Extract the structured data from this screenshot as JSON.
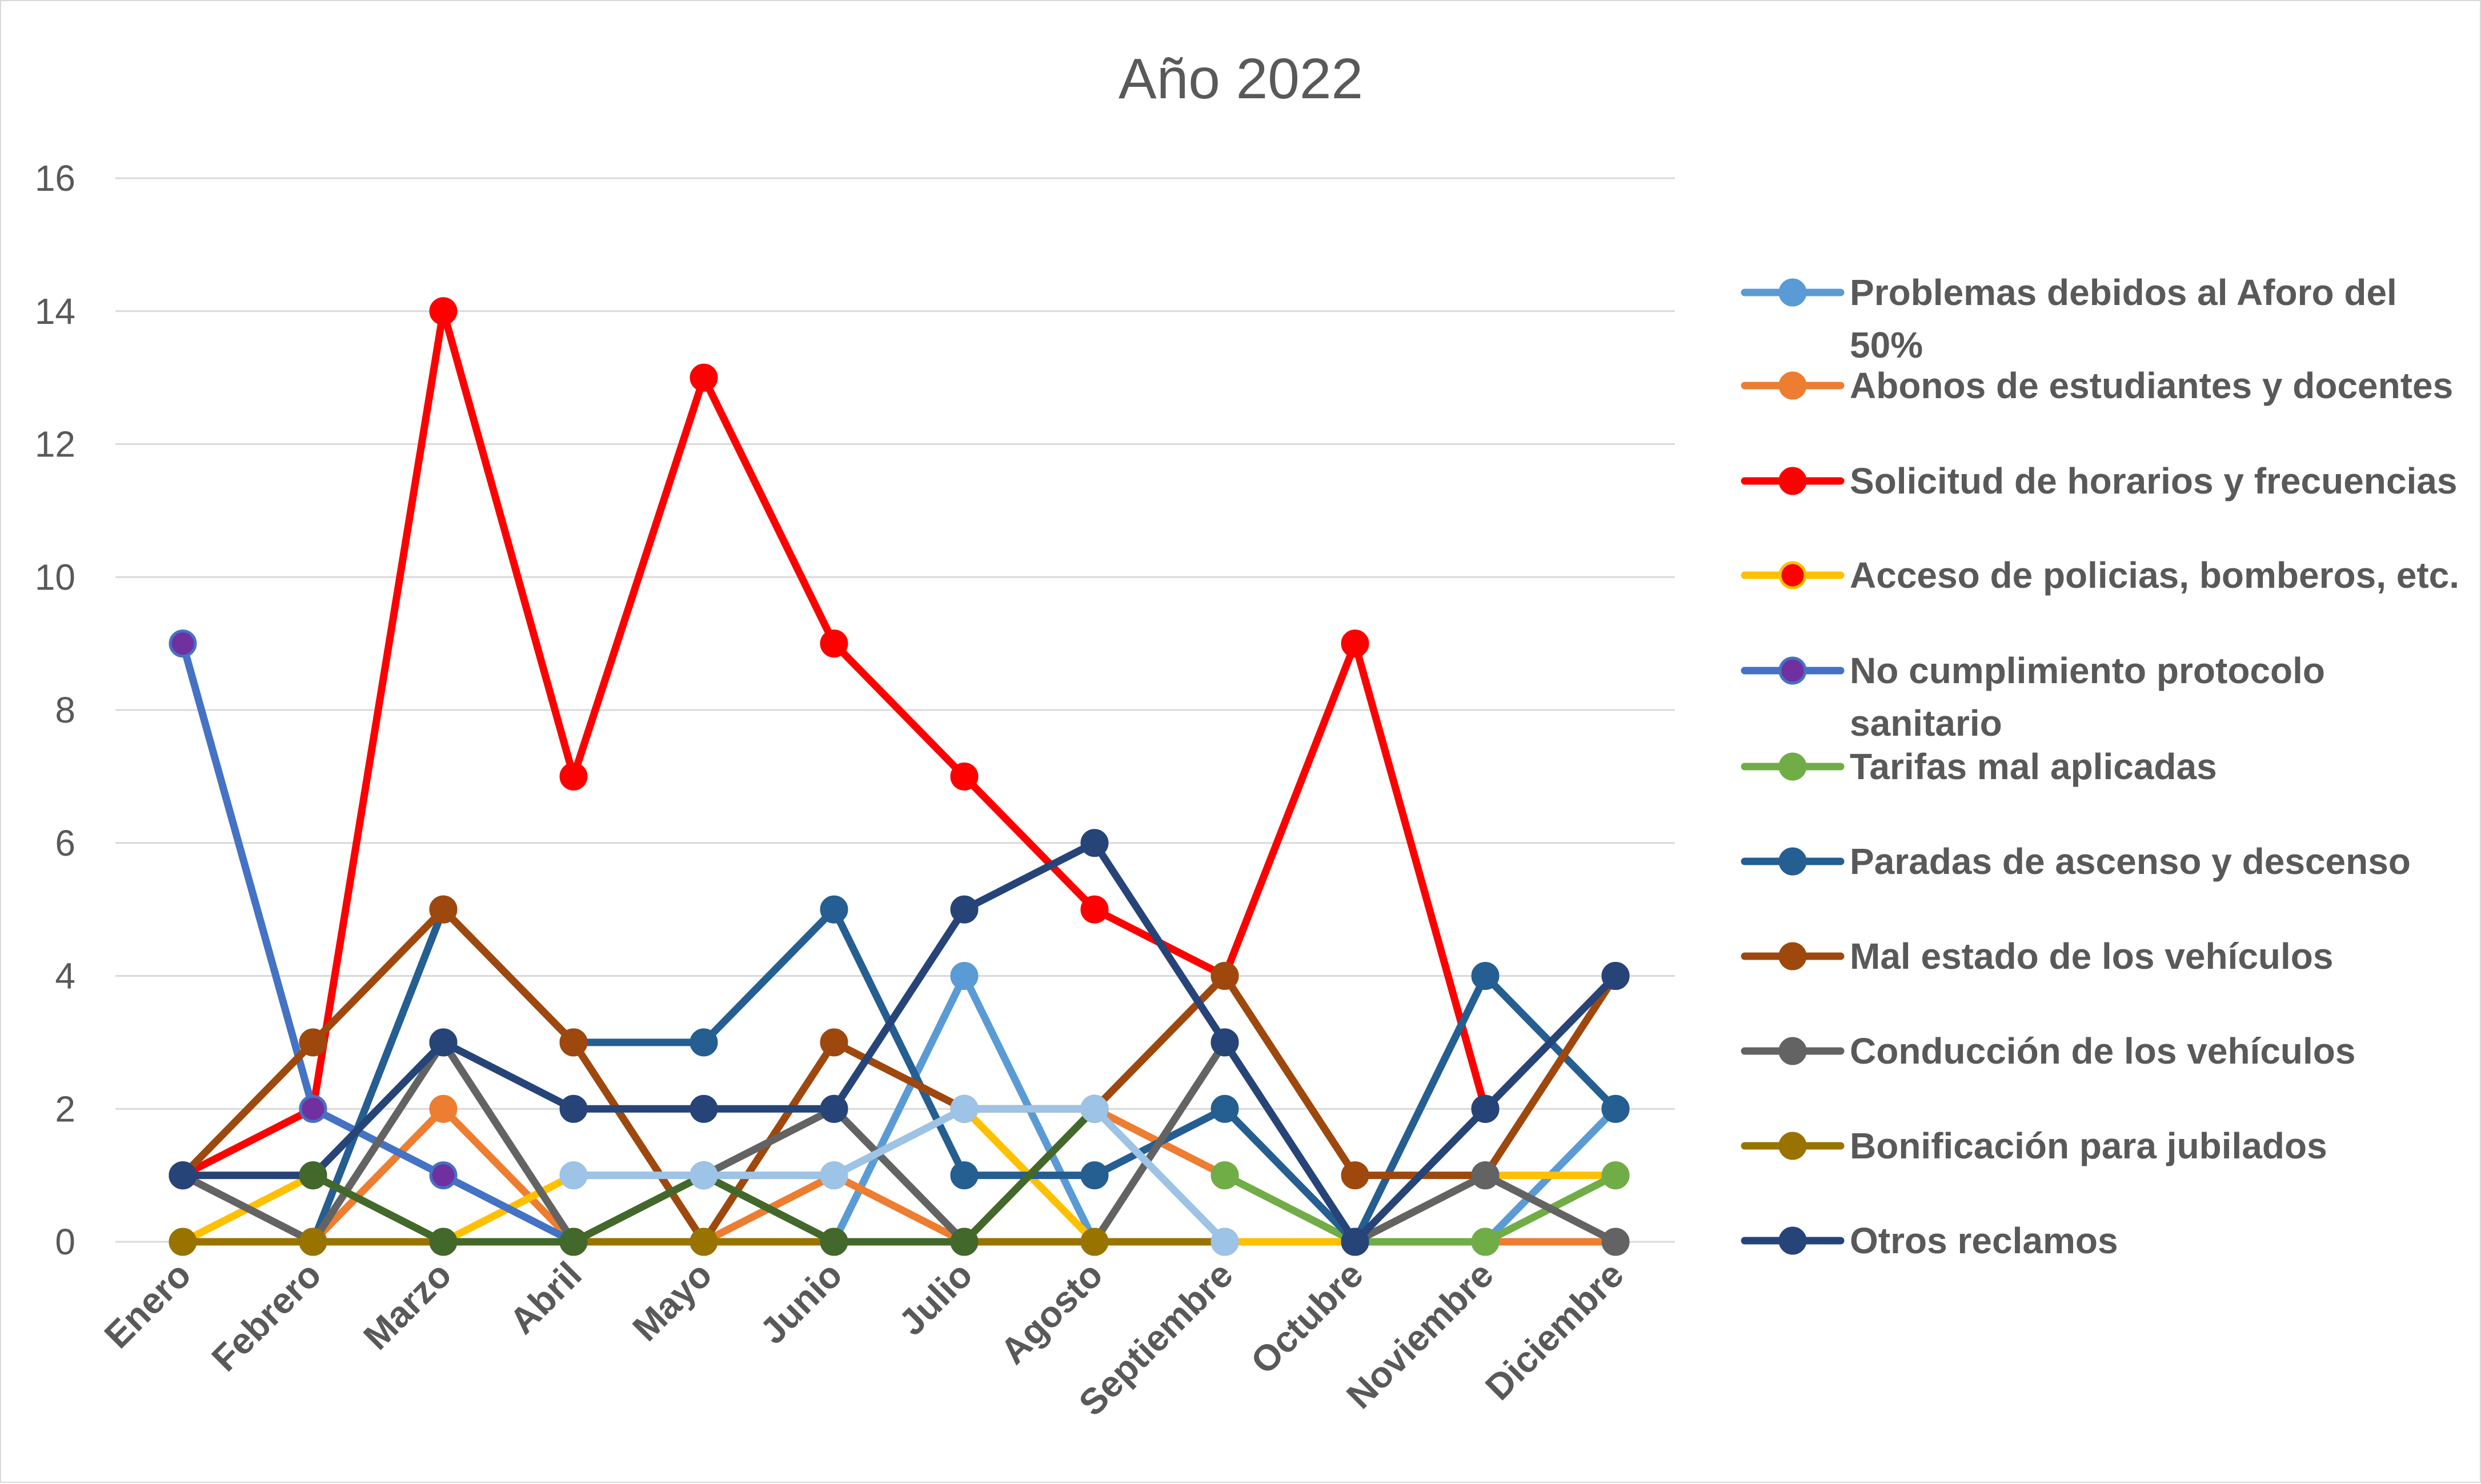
{
  "chart_data": {
    "type": "line",
    "title": "Año 2022",
    "xlabel": "",
    "ylabel": "",
    "ylim": [
      0,
      16
    ],
    "yticks": [
      0,
      2,
      4,
      6,
      8,
      10,
      12,
      14,
      16
    ],
    "grid": "horizontal",
    "legend_position": "right",
    "categories": [
      "Enero",
      "Febrero",
      "Marzo",
      "Abril",
      "Mayo",
      "Junio",
      "Julio",
      "Agosto",
      "Septiembre",
      "Octubre",
      "Noviembre",
      "Diciembre"
    ],
    "series": [
      {
        "name": "Problemas debidos al  Aforo del 50%",
        "color": "#5b9bd5",
        "marker": "#5b9bd5",
        "values": [
          null,
          null,
          null,
          null,
          null,
          0,
          4,
          0,
          0,
          0,
          0,
          2
        ]
      },
      {
        "name": "Abonos de estudiantes y docentes",
        "color": "#ed7d31",
        "marker": "#ed7d31",
        "values": [
          null,
          0,
          2,
          0,
          0,
          1,
          0,
          2,
          1,
          0,
          0,
          0
        ]
      },
      {
        "name": "Solicitud de horarios y frecuencias",
        "color": "#ff0000",
        "marker": "#ff0000",
        "values": [
          1,
          2,
          14,
          7,
          13,
          9,
          7,
          5,
          4,
          9,
          2,
          4
        ]
      },
      {
        "name": "Acceso de policias, bomberos, etc.",
        "color": "#ffc000",
        "marker": "#ff0000",
        "values": [
          0,
          1,
          0,
          1,
          1,
          1,
          2,
          0,
          0,
          0,
          1,
          1
        ]
      },
      {
        "name": "No cumplimiento protocolo sanitario",
        "color": "#4472c4",
        "marker": "#7030a0",
        "values": [
          9,
          2,
          1,
          0,
          null,
          null,
          null,
          null,
          null,
          null,
          null,
          null
        ]
      },
      {
        "name": "Tarifas mal aplicadas",
        "color": "#70ad47",
        "marker": "#70ad47",
        "values": [
          null,
          null,
          null,
          null,
          null,
          null,
          null,
          null,
          1,
          0,
          0,
          1
        ]
      },
      {
        "name": "Paradas de ascenso y descenso",
        "color": "#255e91",
        "marker": "#255e91",
        "values": [
          null,
          0,
          5,
          3,
          3,
          5,
          1,
          1,
          2,
          0,
          4,
          2
        ]
      },
      {
        "name": "Mal estado de los vehículos",
        "color": "#9e480e",
        "marker": "#9e480e",
        "values": [
          1,
          3,
          5,
          3,
          0,
          3,
          2,
          2,
          4,
          1,
          1,
          4
        ]
      },
      {
        "name": "Conducción de los vehículos",
        "color": "#636363",
        "marker": "#636363",
        "values": [
          1,
          0,
          3,
          0,
          1,
          2,
          0,
          0,
          3,
          0,
          1,
          0
        ]
      },
      {
        "name": "Bonificación para jubilados",
        "color": "#997300",
        "marker": "#997300",
        "values": [
          0,
          0,
          0,
          0,
          0,
          0,
          0,
          0,
          0,
          null,
          null,
          null
        ]
      },
      {
        "name": "Otros reclamos",
        "color": "#264478",
        "marker": "#264478",
        "values": [
          1,
          1,
          3,
          2,
          2,
          2,
          5,
          6,
          3,
          0,
          2,
          4
        ]
      },
      {
        "name": "",
        "color": "#43682b",
        "marker": "#43682b",
        "values": [
          null,
          1,
          0,
          0,
          1,
          0,
          0,
          2,
          null,
          null,
          null,
          null
        ]
      },
      {
        "name": "",
        "color": "#9dc3e6",
        "marker": "#9dc3e6",
        "values": [
          null,
          null,
          null,
          1,
          1,
          1,
          2,
          2,
          0,
          null,
          null,
          null
        ]
      }
    ]
  }
}
